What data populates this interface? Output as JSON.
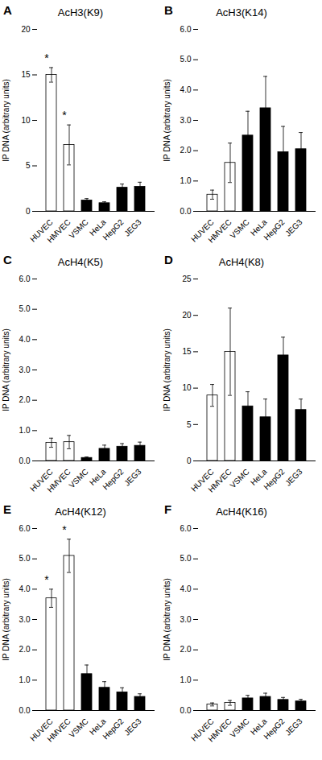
{
  "chart_data": [
    {
      "type": "bar",
      "title": "AcH3(K9)",
      "ylabel": "IP DNA (arbitrary units)",
      "categories": [
        "HUVEC",
        "HMVEC",
        "VSMC",
        "HeLa",
        "HepG2",
        "JEG3"
      ],
      "values": [
        15.0,
        7.3,
        1.2,
        0.9,
        2.6,
        2.7
      ],
      "errors": [
        0.8,
        2.2,
        0.2,
        0.15,
        0.4,
        0.5
      ],
      "colors": [
        "white",
        "white",
        "black",
        "black",
        "black",
        "black"
      ],
      "ylim": [
        0,
        20
      ],
      "yticks": [
        0,
        5,
        10,
        15,
        20
      ],
      "annotations": [
        {
          "text": "A"
        },
        {
          "text": "*",
          "category": "HUVEC"
        },
        {
          "text": "*",
          "category": "HMVEC"
        }
      ]
    },
    {
      "type": "bar",
      "title": "AcH3(K14)",
      "ylabel": "IP DNA (arbitrary units)",
      "categories": [
        "HUVEC",
        "HMVEC",
        "VSMC",
        "HeLa",
        "HepG2",
        "JEG3"
      ],
      "values": [
        0.55,
        1.6,
        2.5,
        3.4,
        1.95,
        2.05
      ],
      "errors": [
        0.15,
        0.65,
        0.8,
        1.05,
        0.85,
        0.55
      ],
      "colors": [
        "white",
        "white",
        "black",
        "black",
        "black",
        "black"
      ],
      "ylim": [
        0,
        6
      ],
      "yticks": [
        0,
        1,
        2,
        3,
        4,
        5,
        6
      ],
      "annotations": [
        {
          "text": "B"
        }
      ]
    },
    {
      "type": "bar",
      "title": "AcH4(K5)",
      "ylabel": "IP DNA (arbitrary units)",
      "categories": [
        "HUVEC",
        "HMVEC",
        "VSMC",
        "HeLa",
        "HepG2",
        "JEG3"
      ],
      "values": [
        0.6,
        0.62,
        0.1,
        0.4,
        0.47,
        0.5
      ],
      "errors": [
        0.15,
        0.22,
        0.03,
        0.12,
        0.1,
        0.12
      ],
      "colors": [
        "white",
        "white",
        "black",
        "black",
        "black",
        "black"
      ],
      "ylim": [
        0,
        6
      ],
      "yticks": [
        0,
        1,
        2,
        3,
        4,
        5,
        6
      ],
      "annotations": [
        {
          "text": "C"
        }
      ]
    },
    {
      "type": "bar",
      "title": "AcH4(K8)",
      "ylabel": "IP DNA (arbitrary units)",
      "categories": [
        "HUVEC",
        "HMVEC",
        "VSMC",
        "HeLa",
        "HepG2",
        "JEG3"
      ],
      "values": [
        9.0,
        15.0,
        7.5,
        6.0,
        14.5,
        7.0
      ],
      "errors": [
        1.5,
        6.0,
        2.0,
        2.5,
        2.5,
        1.5
      ],
      "colors": [
        "white",
        "white",
        "black",
        "black",
        "black",
        "black"
      ],
      "ylim": [
        0,
        25
      ],
      "yticks": [
        0,
        5,
        10,
        15,
        20,
        25
      ],
      "annotations": [
        {
          "text": "D"
        }
      ]
    },
    {
      "type": "bar",
      "title": "AcH4(K12)",
      "ylabel": "IP DNA (arbitrary units)",
      "categories": [
        "HUVEC",
        "HMVEC",
        "VSMC",
        "HeLa",
        "HepG2",
        "JEG3"
      ],
      "values": [
        3.7,
        5.1,
        1.2,
        0.75,
        0.6,
        0.45
      ],
      "errors": [
        0.3,
        0.55,
        0.3,
        0.2,
        0.15,
        0.1
      ],
      "colors": [
        "white",
        "white",
        "black",
        "black",
        "black",
        "black"
      ],
      "ylim": [
        0,
        6
      ],
      "yticks": [
        0,
        1,
        2,
        3,
        4,
        5,
        6
      ],
      "annotations": [
        {
          "text": "E"
        },
        {
          "text": "*",
          "category": "HUVEC"
        },
        {
          "text": "*",
          "category": "HMVEC"
        }
      ]
    },
    {
      "type": "bar",
      "title": "AcH4(K16)",
      "ylabel": "IP DNA (arbitrary units)",
      "categories": [
        "HUVEC",
        "HMVEC",
        "VSMC",
        "HeLa",
        "HepG2",
        "JEG3"
      ],
      "values": [
        0.2,
        0.25,
        0.4,
        0.45,
        0.35,
        0.3
      ],
      "errors": [
        0.05,
        0.08,
        0.1,
        0.12,
        0.08,
        0.07
      ],
      "colors": [
        "white",
        "white",
        "black",
        "black",
        "black",
        "black"
      ],
      "ylim": [
        0,
        6
      ],
      "yticks": [
        0,
        1,
        2,
        3,
        4,
        5,
        6
      ],
      "annotations": [
        {
          "text": "F"
        }
      ]
    }
  ]
}
